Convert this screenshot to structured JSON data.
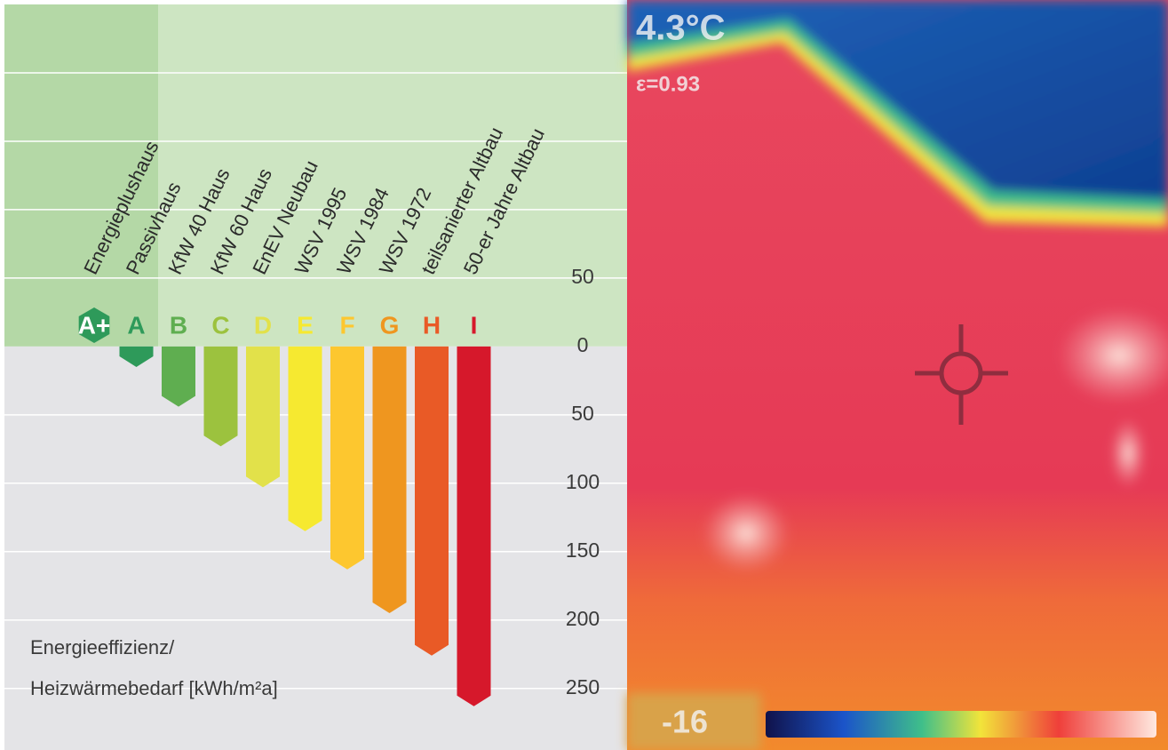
{
  "chart_data": {
    "type": "bar",
    "categories": [
      "A+",
      "A",
      "B",
      "C",
      "D",
      "E",
      "F",
      "G",
      "H",
      "I"
    ],
    "descriptions": [
      "Energieplushaus",
      "Passivhaus",
      "KfW 40 Haus",
      "KfW 60 Haus",
      "EnEV Neubau",
      "WSV 1995",
      "WSV 1984",
      "WSV 1972",
      "teilsanierter Altbau",
      "50-er Jahre Altbau"
    ],
    "values": [
      null,
      15,
      44,
      73,
      103,
      135,
      163,
      195,
      226,
      263
    ],
    "colors": [
      "#2e9a5a",
      "#2e9a5a",
      "#5fae50",
      "#9cc23e",
      "#e2e14a",
      "#f6e930",
      "#fdc72f",
      "#ef961f",
      "#e95a26",
      "#d6182b"
    ],
    "ylim": [
      -250,
      295
    ],
    "y_inverted": true,
    "yticks": [
      {
        "value": -50,
        "label": "50"
      },
      0,
      50,
      100,
      150,
      200,
      250
    ],
    "grid_lines": [
      -200,
      -150,
      -100,
      -50,
      50,
      100,
      150,
      200,
      250
    ],
    "y_label": [
      "Energieeffizienz/",
      "Heizwärmebedarf [kWh/m²a]"
    ]
  },
  "thermal_image": {
    "temperature": "4.3°C",
    "emissivity": "ε=0.93",
    "scale_min": "-16"
  }
}
